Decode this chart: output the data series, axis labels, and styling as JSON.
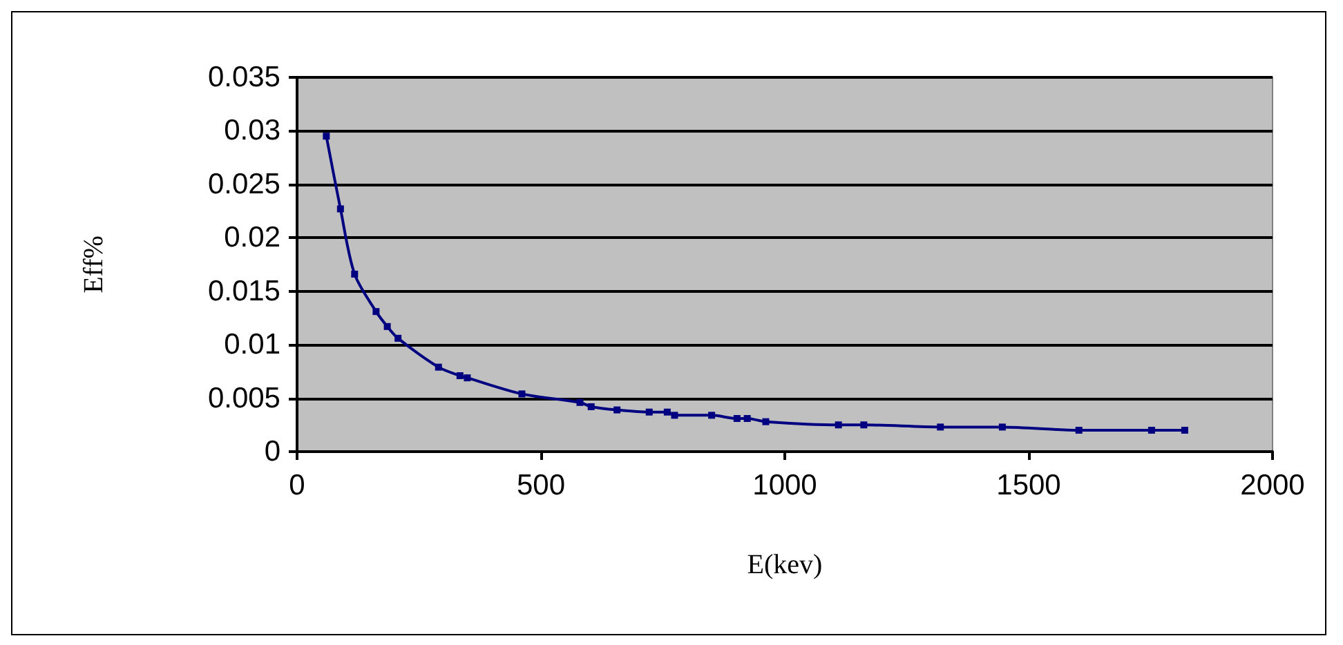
{
  "chart_data": {
    "type": "line",
    "xlabel": "E(kev)",
    "ylabel": "Eff%",
    "x": [
      60,
      89,
      118,
      162,
      185,
      207,
      290,
      334,
      349,
      461,
      580,
      603,
      656,
      722,
      759,
      774,
      850,
      902,
      923,
      961,
      1110,
      1162,
      1319,
      1446,
      1603,
      1752,
      1820
    ],
    "series": [
      {
        "color": "#000080",
        "values": [
          0.0295,
          0.0227,
          0.0166,
          0.0131,
          0.0117,
          0.0106,
          0.0079,
          0.0071,
          0.0069,
          0.0054,
          0.0046,
          0.0042,
          0.0039,
          0.0037,
          0.0037,
          0.0034,
          0.0034,
          0.0031,
          0.0031,
          0.0028,
          0.0025,
          0.0025,
          0.0023,
          0.0023,
          0.002,
          0.002,
          0.002
        ]
      }
    ],
    "xlim": [
      0,
      2000
    ],
    "xticks": [
      0,
      500,
      1000,
      1500,
      2000
    ],
    "ylim": [
      0,
      0.035
    ],
    "yticks": [
      0,
      0.005,
      0.01,
      0.015,
      0.02,
      0.025,
      0.03,
      0.035
    ],
    "grid": "y",
    "marker": "square",
    "line_style": "solid"
  }
}
